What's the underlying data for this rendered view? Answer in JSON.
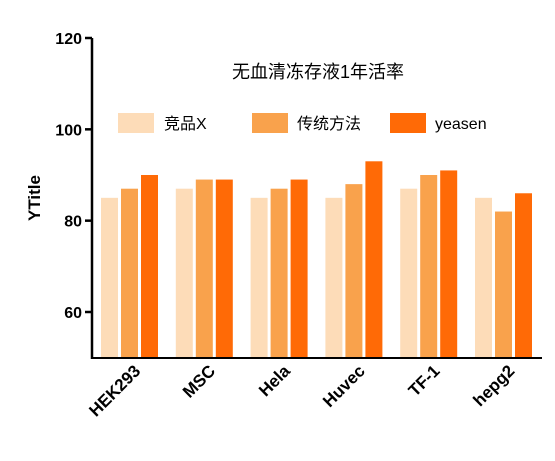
{
  "chart_data": {
    "type": "bar",
    "title": "无血清冻存液1年活率",
    "ylabel": "YTitle",
    "xlabel": "",
    "ylim": [
      50,
      120
    ],
    "yticks": [
      60,
      80,
      100,
      120
    ],
    "categories": [
      "HEK293",
      "MSC",
      "Hela",
      "Huvec",
      "TF-1",
      "hepg2"
    ],
    "series": [
      {
        "name": "竞品X",
        "color": "#FDDCB8",
        "values": [
          85,
          87,
          85,
          85,
          87,
          85
        ]
      },
      {
        "name": "传统方法",
        "color": "#F9A24C",
        "values": [
          87,
          89,
          87,
          88,
          90,
          82
        ]
      },
      {
        "name": "yeasen",
        "color": "#FF6A06",
        "values": [
          90,
          89,
          89,
          93,
          91,
          86
        ]
      }
    ],
    "legend_position": "top",
    "grid": false
  }
}
